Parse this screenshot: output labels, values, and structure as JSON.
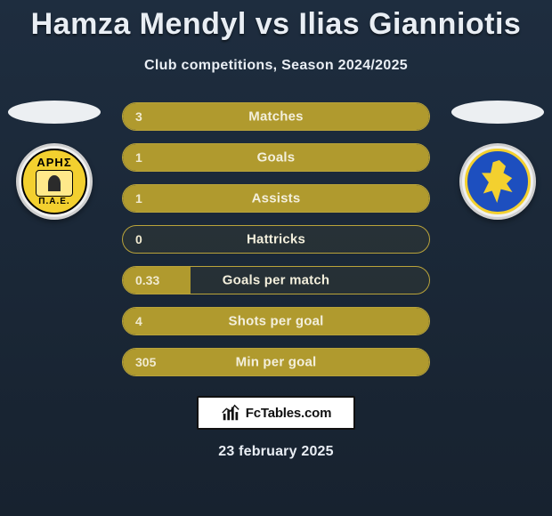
{
  "title": "Hamza Mendyl vs Ilias Gianniotis",
  "subtitle": "Club competitions, Season 2024/2025",
  "date": "23 february 2025",
  "brand": "FcTables.com",
  "colors": {
    "background_top": "#1e2d3f",
    "background_bottom": "#17222f",
    "bar_fill": "#b09a2e",
    "bar_border": "#b9a33a",
    "text_light": "#e9eef4",
    "text_bar": "#f3efdc",
    "club_left_primary": "#f3d02f",
    "club_right_primary": "#1d4fbf",
    "club_right_accent": "#f3d02f"
  },
  "left_club": {
    "name": "Aris",
    "top_text": "ΑΡΗΣ",
    "bottom_text": "Π.Α.Ε."
  },
  "right_club": {
    "name": "Panaitolikos"
  },
  "bars": [
    {
      "label": "Matches",
      "value": "3",
      "fill_pct": 100
    },
    {
      "label": "Goals",
      "value": "1",
      "fill_pct": 100
    },
    {
      "label": "Assists",
      "value": "1",
      "fill_pct": 100
    },
    {
      "label": "Hattricks",
      "value": "0",
      "fill_pct": 0
    },
    {
      "label": "Goals per match",
      "value": "0.33",
      "fill_pct": 22
    },
    {
      "label": "Shots per goal",
      "value": "4",
      "fill_pct": 100
    },
    {
      "label": "Min per goal",
      "value": "305",
      "fill_pct": 100
    }
  ]
}
